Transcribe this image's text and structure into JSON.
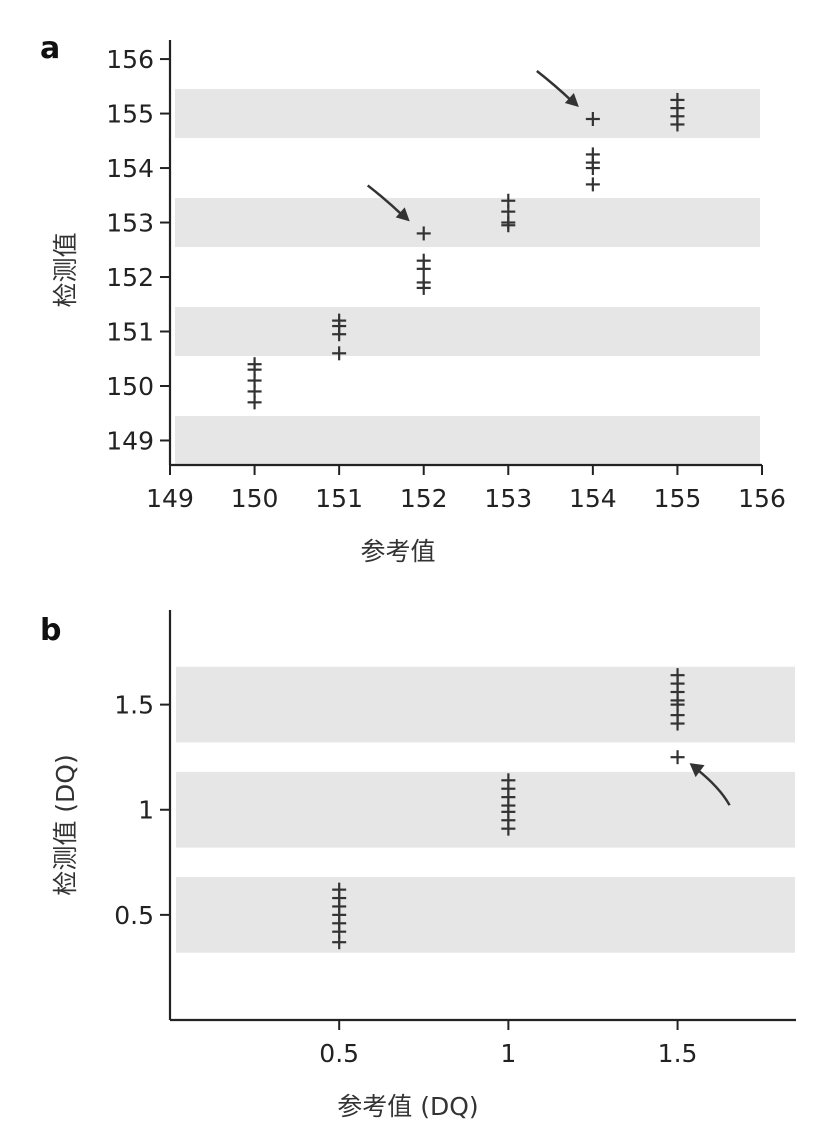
{
  "chart_data": [
    {
      "type": "scatter",
      "panel": "a",
      "title": "",
      "xlabel": "参考值",
      "ylabel": "检测值",
      "xlim": [
        149,
        156
      ],
      "ylim": [
        148.55,
        156.35
      ],
      "xticks": [
        149,
        150,
        151,
        152,
        153,
        154,
        155,
        156
      ],
      "xtick_labels": [
        "149",
        "150",
        "151",
        "152",
        "153",
        "154",
        "155",
        "156"
      ],
      "yticks": [
        149,
        150,
        151,
        152,
        153,
        154,
        155,
        156
      ],
      "ytick_labels": [
        "149",
        "150",
        "151",
        "152",
        "153",
        "154",
        "155",
        "156"
      ],
      "bands": [
        [
          148.55,
          149.45
        ],
        [
          150.55,
          151.45
        ],
        [
          152.55,
          153.45
        ],
        [
          154.55,
          155.45
        ]
      ],
      "marker": "+",
      "points": [
        [
          150,
          150.4
        ],
        [
          150,
          150.3
        ],
        [
          150,
          150.1
        ],
        [
          150,
          149.9
        ],
        [
          150,
          149.7
        ],
        [
          151,
          151.2
        ],
        [
          151,
          151.1
        ],
        [
          151,
          150.95
        ],
        [
          151,
          150.6
        ],
        [
          152,
          152.8
        ],
        [
          152,
          152.3
        ],
        [
          152,
          152.15
        ],
        [
          152,
          151.9
        ],
        [
          152,
          151.8
        ],
        [
          153,
          153.4
        ],
        [
          153,
          153.2
        ],
        [
          153,
          153.0
        ],
        [
          153,
          152.95
        ],
        [
          154,
          154.9
        ],
        [
          154,
          154.25
        ],
        [
          154,
          154.1
        ],
        [
          154,
          154.0
        ],
        [
          154,
          153.7
        ],
        [
          155,
          155.25
        ],
        [
          155,
          155.1
        ],
        [
          155,
          154.95
        ],
        [
          155,
          154.8
        ]
      ],
      "arrows": [
        {
          "x": 152,
          "y": 152.8,
          "from": "upper-left"
        },
        {
          "x": 154,
          "y": 154.9,
          "from": "upper-left"
        }
      ]
    },
    {
      "type": "scatter",
      "panel": "b",
      "title": "",
      "xlabel": "参考值 (DQ)",
      "ylabel": "检测值 (DQ)",
      "xlim": [
        0.0,
        1.85
      ],
      "ylim": [
        0.0,
        1.95
      ],
      "xticks": [
        0.5,
        1,
        1.5
      ],
      "xtick_labels": [
        "0.5",
        "1",
        "1.5"
      ],
      "yticks": [
        0.5,
        1,
        1.5
      ],
      "ytick_labels": [
        "0.5",
        "1",
        "1.5"
      ],
      "bands": [
        [
          0.32,
          0.68
        ],
        [
          0.82,
          1.18
        ],
        [
          1.32,
          1.68
        ]
      ],
      "marker": "+",
      "points": [
        [
          0.5,
          0.62
        ],
        [
          0.5,
          0.58
        ],
        [
          0.5,
          0.54
        ],
        [
          0.5,
          0.5
        ],
        [
          0.5,
          0.46
        ],
        [
          0.5,
          0.42
        ],
        [
          0.5,
          0.37
        ],
        [
          1,
          1.14
        ],
        [
          1,
          1.1
        ],
        [
          1,
          1.06
        ],
        [
          1,
          1.02
        ],
        [
          1,
          0.99
        ],
        [
          1,
          0.95
        ],
        [
          1,
          0.91
        ],
        [
          1.5,
          1.64
        ],
        [
          1.5,
          1.6
        ],
        [
          1.5,
          1.56
        ],
        [
          1.5,
          1.52
        ],
        [
          1.5,
          1.5
        ],
        [
          1.5,
          1.45
        ],
        [
          1.5,
          1.41
        ],
        [
          1.5,
          1.25
        ]
      ],
      "arrows": [
        {
          "x": 1.5,
          "y": 1.25,
          "from": "lower-right"
        }
      ]
    }
  ]
}
